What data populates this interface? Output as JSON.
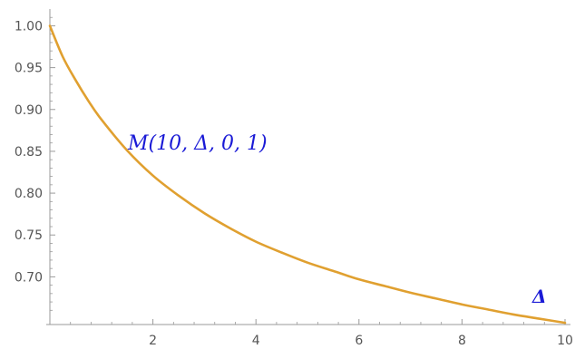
{
  "chart_data": {
    "type": "line",
    "title": "",
    "xlabel": "Δ",
    "ylabel": "",
    "annotation": "M(10, Δ, 0, 1)",
    "xlim": [
      0,
      10
    ],
    "ylim": [
      0.643,
      1.02
    ],
    "x_ticks": [
      2,
      4,
      6,
      8,
      10
    ],
    "x_tick_labels": [
      "2",
      "4",
      "6",
      "8",
      "10"
    ],
    "y_ticks": [
      0.7,
      0.75,
      0.8,
      0.85,
      0.9,
      0.95,
      1.0
    ],
    "y_tick_labels": [
      "0.70",
      "0.75",
      "0.80",
      "0.85",
      "0.90",
      "0.95",
      "1.00"
    ],
    "grid": false,
    "series": [
      {
        "color": "#e0a030",
        "x": [
          0,
          0.25,
          0.5,
          0.75,
          1.0,
          1.5,
          2.0,
          2.5,
          3.0,
          3.5,
          4.0,
          4.5,
          5.0,
          5.5,
          6.0,
          6.5,
          7.0,
          7.5,
          8.0,
          8.5,
          9.0,
          9.5,
          10.0
        ],
        "y": [
          1.0,
          0.963,
          0.935,
          0.91,
          0.888,
          0.851,
          0.821,
          0.797,
          0.776,
          0.758,
          0.742,
          0.729,
          0.717,
          0.707,
          0.697,
          0.689,
          0.681,
          0.674,
          0.667,
          0.661,
          0.655,
          0.65,
          0.645
        ]
      }
    ],
    "colors": {
      "axis": "#9a9a9a",
      "tick_text": "#555555",
      "annotation": "#1a1ad6",
      "line": "#e0a030"
    }
  }
}
